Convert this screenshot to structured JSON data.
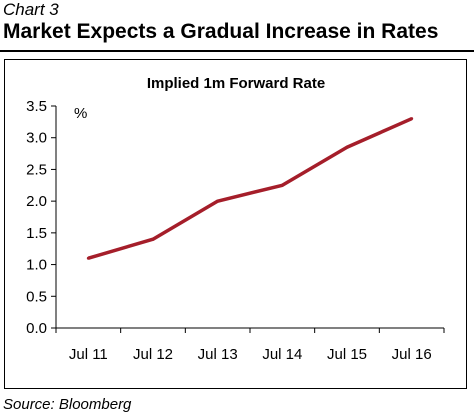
{
  "header": {
    "chart_number": "Chart 3",
    "title": "Market Expects a Gradual Increase in Rates"
  },
  "footer": {
    "source": "Source: Bloomberg"
  },
  "colors": {
    "line": "#A51E2A"
  },
  "chart_data": {
    "type": "line",
    "title": "Implied 1m Forward Rate",
    "ylabel": "%",
    "xlabel": "",
    "categories": [
      "Jul 11",
      "Jul 12",
      "Jul 13",
      "Jul 14",
      "Jul 15",
      "Jul 16"
    ],
    "x": [
      2011.5,
      2012.5,
      2013.5,
      2014.5,
      2015.5,
      2016.5
    ],
    "xlim": [
      2011.0,
      2017.0
    ],
    "series": [
      {
        "x": [
          2011.5,
          2012.5,
          2013.5,
          2014.5,
          2015.5,
          2016.5
        ],
        "values": [
          1.1,
          1.4,
          2.0,
          2.25,
          2.85,
          3.3
        ]
      }
    ],
    "ylim": [
      0,
      3.5
    ],
    "yticks": [
      "0.0",
      "0.5",
      "1.0",
      "1.5",
      "2.0",
      "2.5",
      "3.0",
      "3.5"
    ],
    "grid": false,
    "legend": "none"
  }
}
